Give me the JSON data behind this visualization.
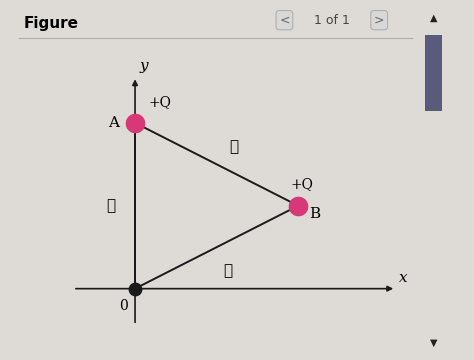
{
  "title": "Figure",
  "nav_text": "1 of 1",
  "bg_color": "#dedad5",
  "panel_color": "#e8e4df",
  "O": [
    0,
    0
  ],
  "A": [
    0,
    1
  ],
  "B": [
    1,
    0.5
  ],
  "charge_color": "#d63878",
  "origin_color": "#1a1a1a",
  "line_color": "#1a1a1a",
  "axis_color": "#1a1a1a",
  "label_A": "A",
  "label_B": "B",
  "label_O": "0",
  "label_x": "x",
  "label_y": "y",
  "charge_label": "+Q",
  "ell_label": "ℓ",
  "scrollbar_bg": "#b0b0b0",
  "scrollbar_thumb": "#5a5a7a",
  "nav_circle_bg": "#d8d8d8",
  "nav_circle_edge": "#aaaaaa",
  "separator_color": "#b0aca8"
}
